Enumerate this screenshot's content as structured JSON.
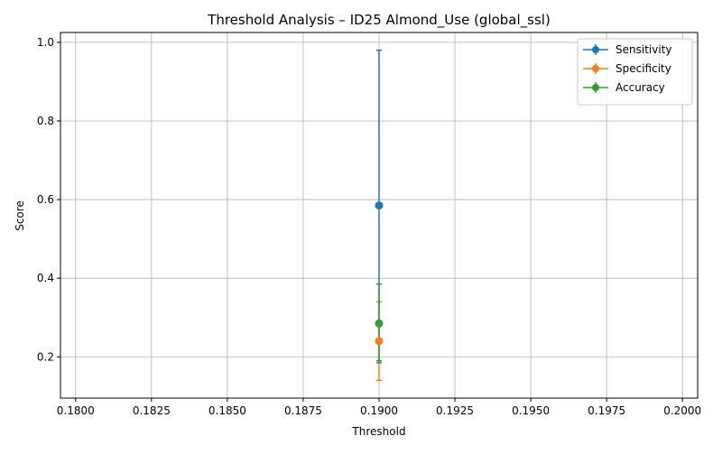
{
  "chart_data": {
    "type": "line",
    "title": "Threshold Analysis – ID25 Almond_Use (global_ssl)",
    "xlabel": "Threshold",
    "ylabel": "Score",
    "xlim": [
      0.1795,
      0.2005
    ],
    "ylim": [
      0.095,
      1.025
    ],
    "x_ticks": [
      0.18,
      0.1825,
      0.185,
      0.1875,
      0.19,
      0.1925,
      0.195,
      0.1975,
      0.2
    ],
    "x_tick_labels": [
      "0.1800",
      "0.1825",
      "0.1850",
      "0.1875",
      "0.1900",
      "0.1925",
      "0.1950",
      "0.1975",
      "0.2000"
    ],
    "y_ticks": [
      0.2,
      0.4,
      0.6,
      0.8,
      1.0
    ],
    "y_tick_labels": [
      "0.2",
      "0.4",
      "0.6",
      "0.8",
      "1.0"
    ],
    "grid": true,
    "legend_position": "top-right",
    "series": [
      {
        "name": "Sensitivity",
        "color": "#1f77b4",
        "x": [
          0.19
        ],
        "y": [
          0.585
        ],
        "err_low": [
          0.19
        ],
        "err_high": [
          0.98
        ]
      },
      {
        "name": "Specificity",
        "color": "#ff7f0e",
        "x": [
          0.19
        ],
        "y": [
          0.24
        ],
        "err_low": [
          0.14
        ],
        "err_high": [
          0.34
        ]
      },
      {
        "name": "Accuracy",
        "color": "#2ca02c",
        "x": [
          0.19
        ],
        "y": [
          0.285
        ],
        "err_low": [
          0.185
        ],
        "err_high": [
          0.385
        ]
      }
    ]
  }
}
